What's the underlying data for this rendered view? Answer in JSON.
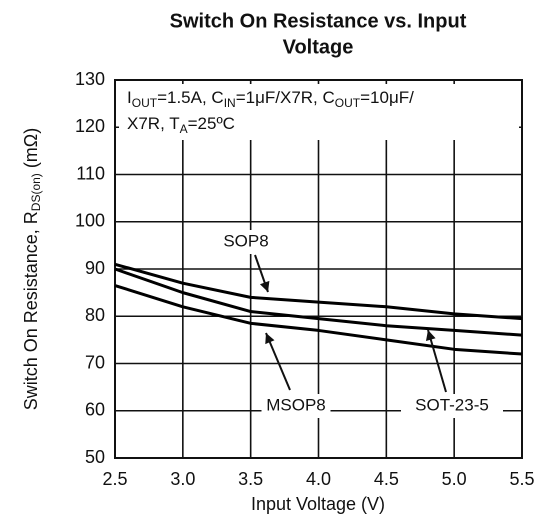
{
  "chart_data": {
    "type": "line",
    "title": [
      "Switch On Resistance vs. Input",
      "Voltage"
    ],
    "xlabel": "Input Voltage (V)",
    "ylabel": [
      "Switch On Resistance, R",
      "DS(on)",
      " (mΩ)"
    ],
    "annotations": [
      [
        "I",
        "OUT",
        "=1.5A, C",
        "IN",
        "=1μF/X7R, C",
        "OUT",
        "=10μF/"
      ],
      [
        "X7R, T",
        "A",
        "=25ºC"
      ]
    ],
    "x": [
      2.5,
      3,
      3.5,
      4,
      4.5,
      5,
      5.5
    ],
    "series": [
      {
        "name": "SOP8",
        "color": "#000000",
        "values": [
          91,
          87,
          84,
          83,
          82,
          80.5,
          79.5
        ]
      },
      {
        "name": "SOT-23-5",
        "color": "#000000",
        "values": [
          90,
          85,
          81,
          79.5,
          78,
          77,
          76
        ]
      },
      {
        "name": "MSOP8",
        "color": "#000000",
        "values": [
          86.5,
          82,
          78.5,
          77,
          75,
          73,
          72
        ]
      }
    ],
    "xlim": [
      2.5,
      5.5
    ],
    "xticks": [
      2.5,
      {
        "value": 3,
        "label": "3.0"
      },
      3.5,
      {
        "value": 4,
        "label": "4.0"
      },
      4.5,
      {
        "value": 5,
        "label": "5.0"
      },
      5.5
    ],
    "ylim": [
      50,
      130
    ],
    "yticks": [
      50,
      60,
      70,
      80,
      90,
      100,
      110,
      120,
      130
    ],
    "grid": true
  }
}
